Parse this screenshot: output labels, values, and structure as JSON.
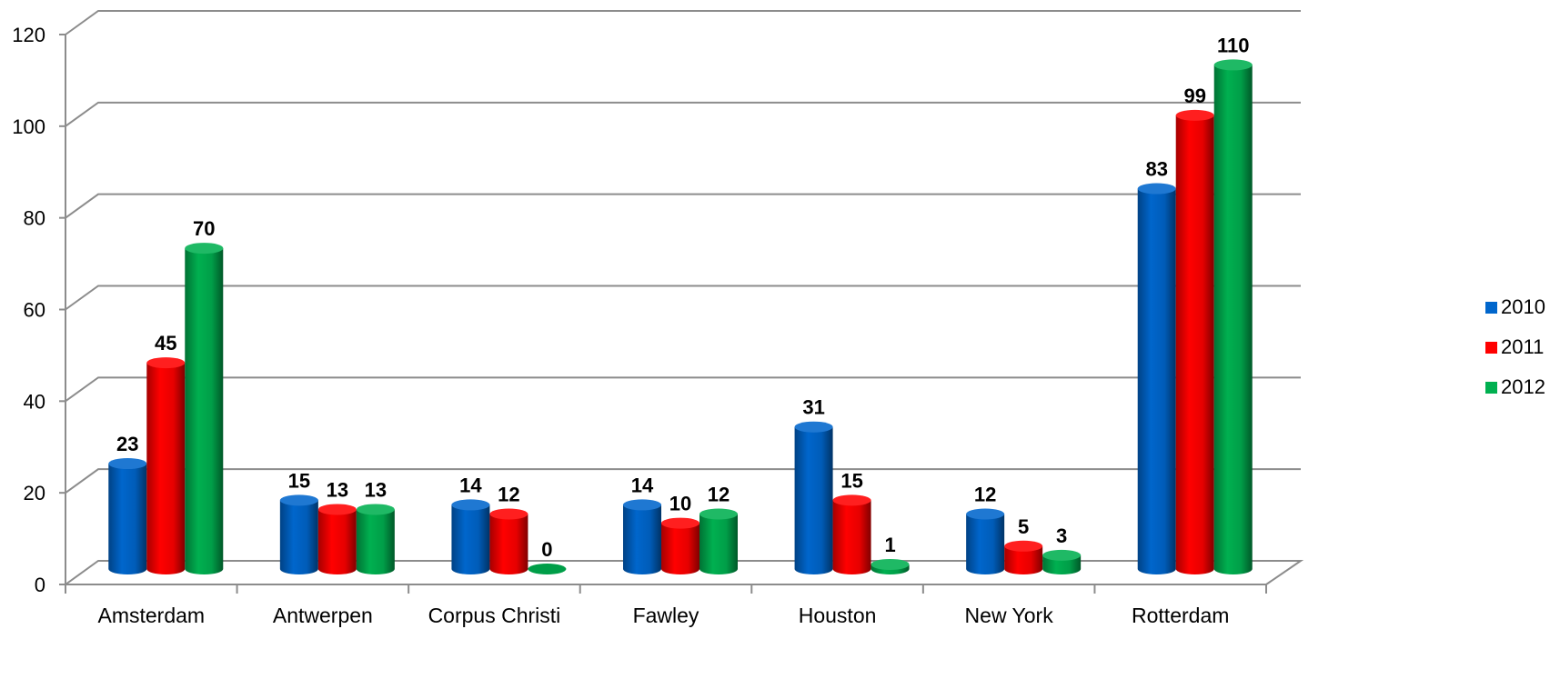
{
  "chart_data": {
    "type": "bar",
    "style": "3d-cylinder",
    "categories": [
      "Amsterdam",
      "Antwerpen",
      "Corpus Christi",
      "Fawley",
      "Houston",
      "New York",
      "Rotterdam"
    ],
    "series": [
      {
        "name": "2010",
        "values": [
          23,
          15,
          14,
          14,
          31,
          12,
          83
        ],
        "color": "#0066cc"
      },
      {
        "name": "2011",
        "values": [
          45,
          13,
          12,
          10,
          15,
          5,
          99
        ],
        "color": "#ff0000"
      },
      {
        "name": "2012",
        "values": [
          70,
          13,
          0,
          12,
          1,
          3,
          110
        ],
        "color": "#00b050"
      }
    ],
    "y_ticks": [
      "0",
      "20",
      "40",
      "60",
      "80",
      "100",
      "120"
    ],
    "ylim": [
      0,
      120
    ],
    "grid": true,
    "legend_position": "right",
    "data_labels": true
  }
}
